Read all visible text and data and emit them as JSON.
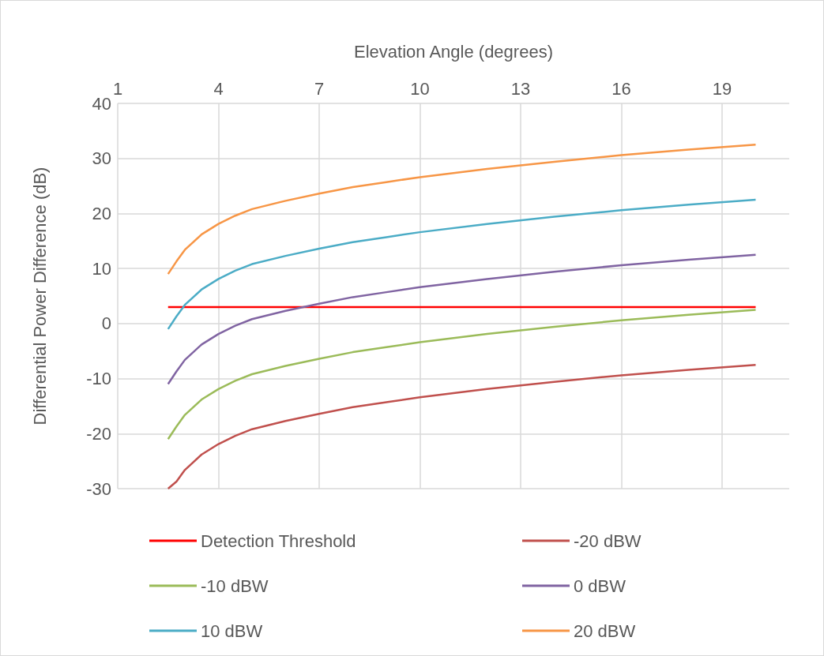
{
  "chart_data": {
    "type": "line",
    "xlabel": "Elevation Angle (degrees)",
    "ylabel": "Differential Power Difference (dB)",
    "x": [
      2.5,
      2.75,
      3,
      3.5,
      4,
      4.5,
      5,
      6,
      7,
      8,
      9,
      10,
      12,
      14,
      16,
      18,
      20
    ],
    "series": [
      {
        "name": "Detection Threshold",
        "color": "#ff0000",
        "values": [
          3,
          3,
          3,
          3,
          3,
          3,
          3,
          3,
          3,
          3,
          3,
          3,
          3,
          3,
          3,
          3,
          3
        ]
      },
      {
        "name": "-20 dBW",
        "color": "#c0504d",
        "values": [
          -30,
          -28.7,
          -26.6,
          -23.8,
          -21.9,
          -20.4,
          -19.2,
          -17.7,
          -16.4,
          -15.2,
          -14.3,
          -13.4,
          -11.9,
          -10.6,
          -9.4,
          -8.4,
          -7.5
        ]
      },
      {
        "name": "-10 dBW",
        "color": "#9bbb59",
        "values": [
          -21,
          -18.7,
          -16.6,
          -13.8,
          -11.9,
          -10.4,
          -9.2,
          -7.7,
          -6.4,
          -5.2,
          -4.3,
          -3.4,
          -1.9,
          -0.6,
          0.6,
          1.6,
          2.5
        ]
      },
      {
        "name": "0 dBW",
        "color": "#8064a2",
        "values": [
          -11,
          -8.7,
          -6.6,
          -3.8,
          -1.9,
          -0.4,
          0.8,
          2.3,
          3.6,
          4.8,
          5.7,
          6.6,
          8.1,
          9.4,
          10.6,
          11.6,
          12.5
        ]
      },
      {
        "name": "10 dBW",
        "color": "#4bacc6",
        "values": [
          -1,
          1.3,
          3.4,
          6.2,
          8.1,
          9.6,
          10.8,
          12.3,
          13.6,
          14.8,
          15.7,
          16.6,
          18.1,
          19.4,
          20.6,
          21.6,
          22.5
        ]
      },
      {
        "name": "20 dBW",
        "color": "#f79646",
        "values": [
          9,
          11.3,
          13.4,
          16.2,
          18.1,
          19.6,
          20.8,
          22.3,
          23.6,
          24.8,
          25.7,
          26.6,
          28.1,
          29.4,
          30.6,
          31.6,
          32.5
        ]
      }
    ],
    "xlim": [
      1,
      21
    ],
    "xticks": [
      1,
      4,
      7,
      10,
      13,
      16,
      19
    ],
    "ylim": [
      -30,
      40
    ],
    "yticks": [
      -30,
      -20,
      -10,
      0,
      10,
      20,
      30,
      40
    ],
    "grid": true,
    "legend": "bottom",
    "marker": "none",
    "line_style": "solid"
  }
}
